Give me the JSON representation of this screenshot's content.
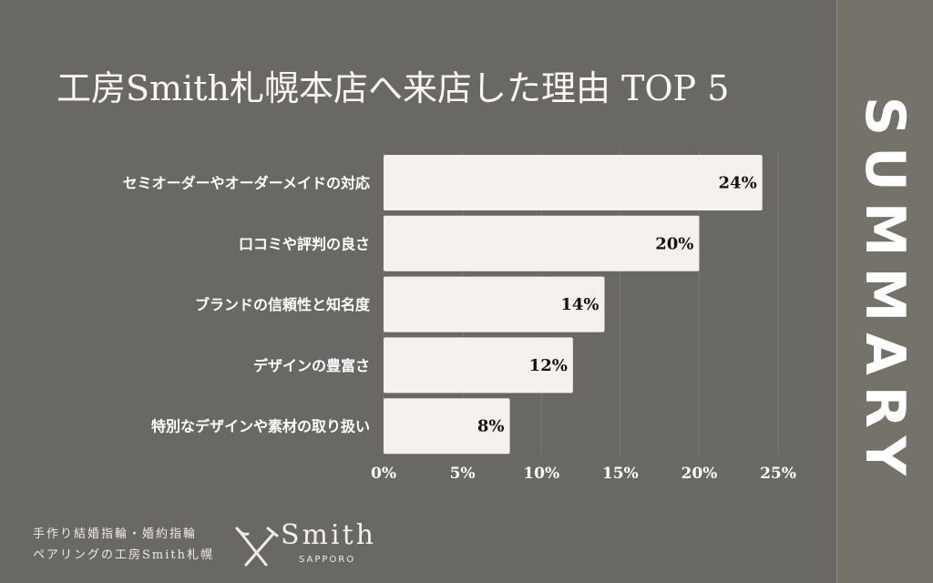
{
  "chart_data": {
    "type": "bar",
    "orientation": "horizontal",
    "title": "工房Smith札幌本店へ来店した理由 TOP 5",
    "categories": [
      "セミオーダーやオーダーメイドの対応",
      "口コミや評判の良さ",
      "ブランドの信頼性と知名度",
      "デザインの豊富さ",
      "特別なデザインや素材の取り扱い"
    ],
    "values": [
      24,
      20,
      14,
      12,
      8
    ],
    "data_labels": [
      "24%",
      "20%",
      "14%",
      "12%",
      "8%"
    ],
    "xlim": [
      0,
      25
    ],
    "x_ticks": [
      0,
      5,
      10,
      15,
      20,
      25
    ],
    "x_tick_labels": [
      "0%",
      "5%",
      "10%",
      "15%",
      "20%",
      "25%"
    ],
    "grid": "vertical",
    "colors": {
      "bar": "#f4f1ee",
      "background": "#6a6864",
      "side_panel": "#75726a"
    }
  },
  "side_label": "SUMMARY",
  "footer": {
    "line1": "手作り結婚指輪・婚約指輪",
    "line2": "ペアリングの工房Smith札幌",
    "logo_word": "Smith",
    "logo_sub": "SAPPORO"
  }
}
